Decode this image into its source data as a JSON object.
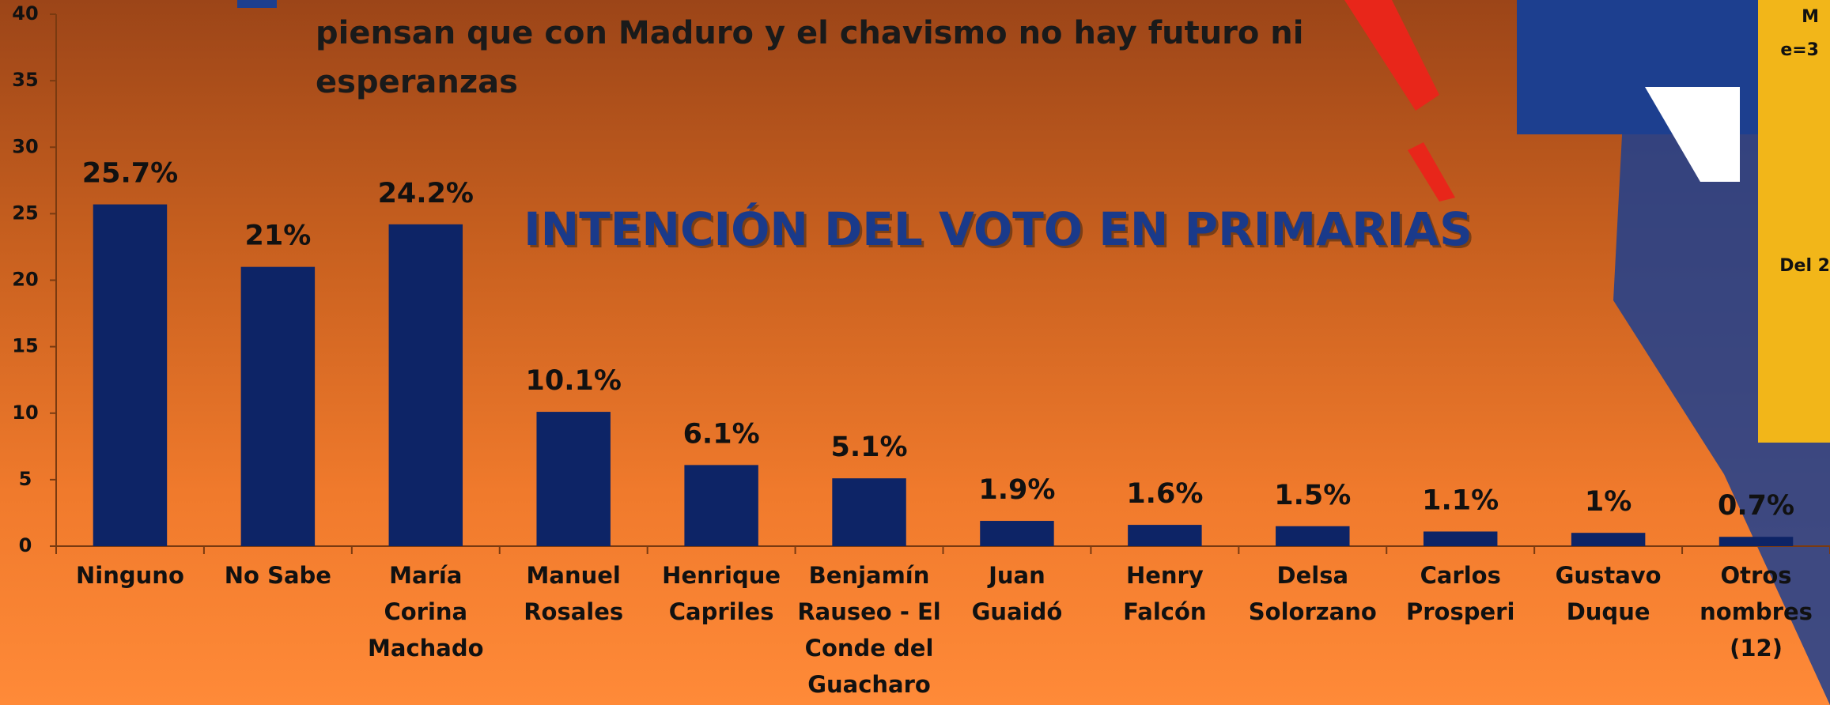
{
  "chart_data": {
    "type": "bar",
    "title": "INTENCIÓN DEL VOTO EN PRIMARIAS",
    "legend_text": [
      "piensan que con Maduro y el chavismo no hay futuro ni",
      "esperanzas"
    ],
    "categories": [
      "Ninguno",
      "No Sabe",
      "María Corina Machado",
      "Manuel Rosales",
      "Henrique Capriles",
      "Benjamín Rauseo - El Conde del Guacharo",
      "Juan Guaidó",
      "Henry Falcón",
      "Delsa Solorzano",
      "Carlos Prosperi",
      "Gustavo Duque",
      "Otros nombres (12)"
    ],
    "values": [
      25.7,
      21,
      24.2,
      10.1,
      6.1,
      5.1,
      1.9,
      1.6,
      1.5,
      1.1,
      1,
      0.7
    ],
    "value_labels": [
      "25.7%",
      "21%",
      "24.2%",
      "10.1%",
      "6.1%",
      "5.1%",
      "1.9%",
      "1.6%",
      "1.5%",
      "1.1%",
      "1%",
      "0.7%"
    ],
    "color": "#0d2466",
    "ylim": [
      0,
      40
    ],
    "yticks": [
      0,
      5,
      10,
      15,
      20,
      25,
      30,
      35,
      40
    ],
    "side_texts": [
      "M",
      "e=3",
      "Del 2"
    ]
  }
}
